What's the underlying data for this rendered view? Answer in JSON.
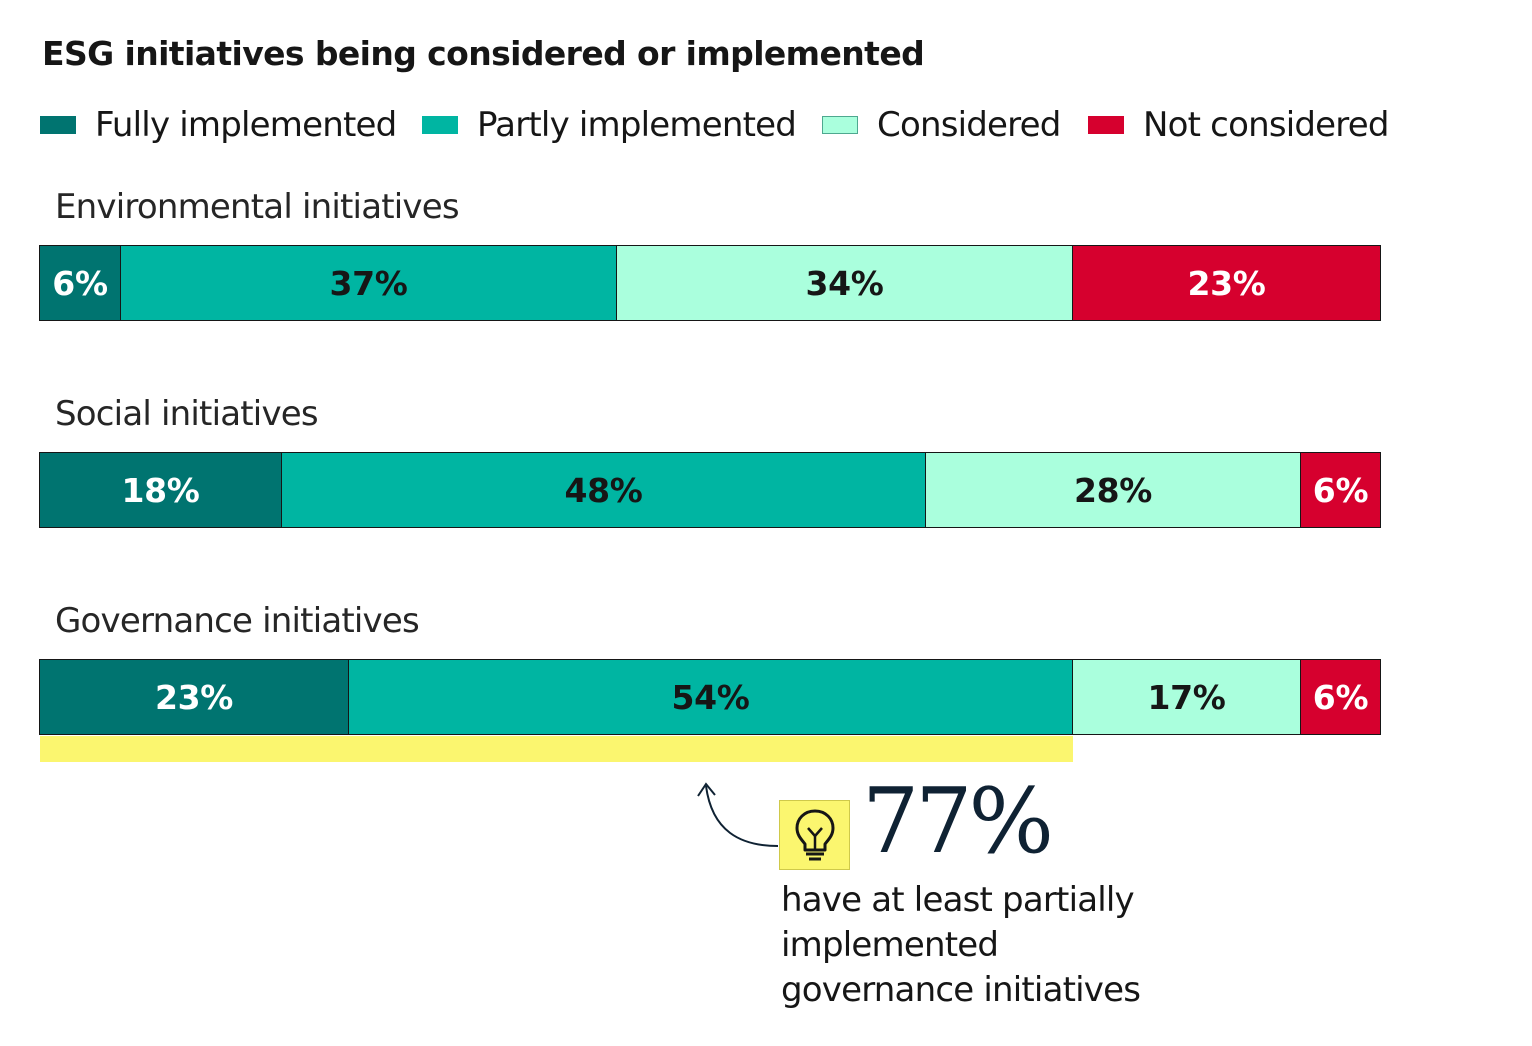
{
  "chart_data": {
    "type": "bar",
    "orientation": "horizontal-stacked-100",
    "title": "ESG initiatives being considered or implemented",
    "xlim": [
      0,
      100
    ],
    "grid": false,
    "legend_placement": "top",
    "colors": {
      "Fully implemented": "#007470",
      "Partly implemented": "#00b5a2",
      "Considered": "#aaffdd",
      "Not considered": "#d6002e"
    },
    "label_colors": {
      "Fully implemented": "#ffffff",
      "Partly implemented": "#161616",
      "Considered": "#161616",
      "Not considered": "#ffffff"
    },
    "legend": [
      "Fully implemented",
      "Partly implemented",
      "Considered",
      "Not considered"
    ],
    "categories": [
      "Environmental initiatives",
      "Social initiatives",
      "Governance initiatives"
    ],
    "series": [
      {
        "name": "Fully implemented",
        "values": [
          6,
          18,
          23
        ],
        "labels": [
          "6%",
          "18%",
          "23%"
        ]
      },
      {
        "name": "Partly implemented",
        "values": [
          37,
          48,
          54
        ],
        "labels": [
          "37%",
          "48%",
          "54%"
        ]
      },
      {
        "name": "Considered",
        "values": [
          34,
          28,
          17
        ],
        "labels": [
          "34%",
          "28%",
          "17%"
        ]
      },
      {
        "name": "Not considered",
        "values": [
          23,
          6,
          6
        ],
        "labels": [
          "23%",
          "6%",
          "6%"
        ]
      }
    ],
    "annotation": {
      "highlight_color": "#fbf66f",
      "highlight_category": "Governance initiatives",
      "highlight_value": 77,
      "value_label": "77%",
      "caption_lines": [
        "have at least partially",
        "implemented",
        "governance initiatives"
      ],
      "icon": "lightbulb-icon"
    }
  }
}
